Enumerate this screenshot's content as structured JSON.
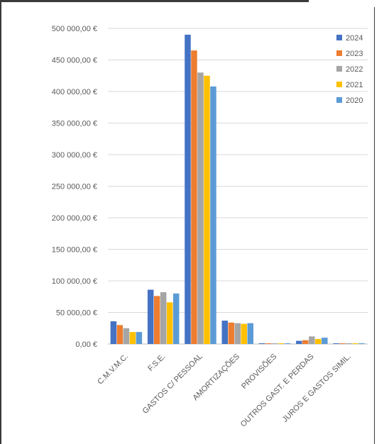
{
  "chart_data": {
    "type": "bar",
    "title": "",
    "xlabel": "",
    "ylabel": "",
    "ylim": [
      0,
      500000
    ],
    "y_ticks": [
      0,
      50000,
      100000,
      150000,
      200000,
      250000,
      300000,
      350000,
      400000,
      450000,
      500000
    ],
    "y_tick_labels": [
      "0,00 €",
      "50 000,00 €",
      "100 000,00 €",
      "150 000,00 €",
      "200 000,00 €",
      "250 000,00 €",
      "300 000,00 €",
      "350 000,00 €",
      "400 000,00 €",
      "450 000,00 €",
      "500 000,00 €"
    ],
    "grid": true,
    "legend_position": "top-right",
    "categories": [
      "C.M.V.M.C.",
      "F.S.E.",
      "GASTOS C/ PESSOAL",
      "AMORTIZAÇÕES",
      "PROVISÕES",
      "OUTROS GAST. E PERDAS",
      "JUROS E GASTOS SIMIL."
    ],
    "series": [
      {
        "name": "2024",
        "color": "#4472c4",
        "values": [
          36000,
          86000,
          490000,
          37000,
          1000,
          5000,
          1000
        ]
      },
      {
        "name": "2023",
        "color": "#ed7d31",
        "values": [
          30000,
          76000,
          465000,
          34000,
          1000,
          6000,
          1000
        ]
      },
      {
        "name": "2022",
        "color": "#a5a5a5",
        "values": [
          25000,
          82000,
          430000,
          33000,
          1000,
          12000,
          1000
        ]
      },
      {
        "name": "2021",
        "color": "#ffc000",
        "values": [
          19000,
          66000,
          425000,
          32000,
          1000,
          8000,
          1000
        ]
      },
      {
        "name": "2020",
        "color": "#5b9bd5",
        "values": [
          19000,
          80000,
          408000,
          33000,
          1000,
          10000,
          1000
        ]
      }
    ]
  }
}
